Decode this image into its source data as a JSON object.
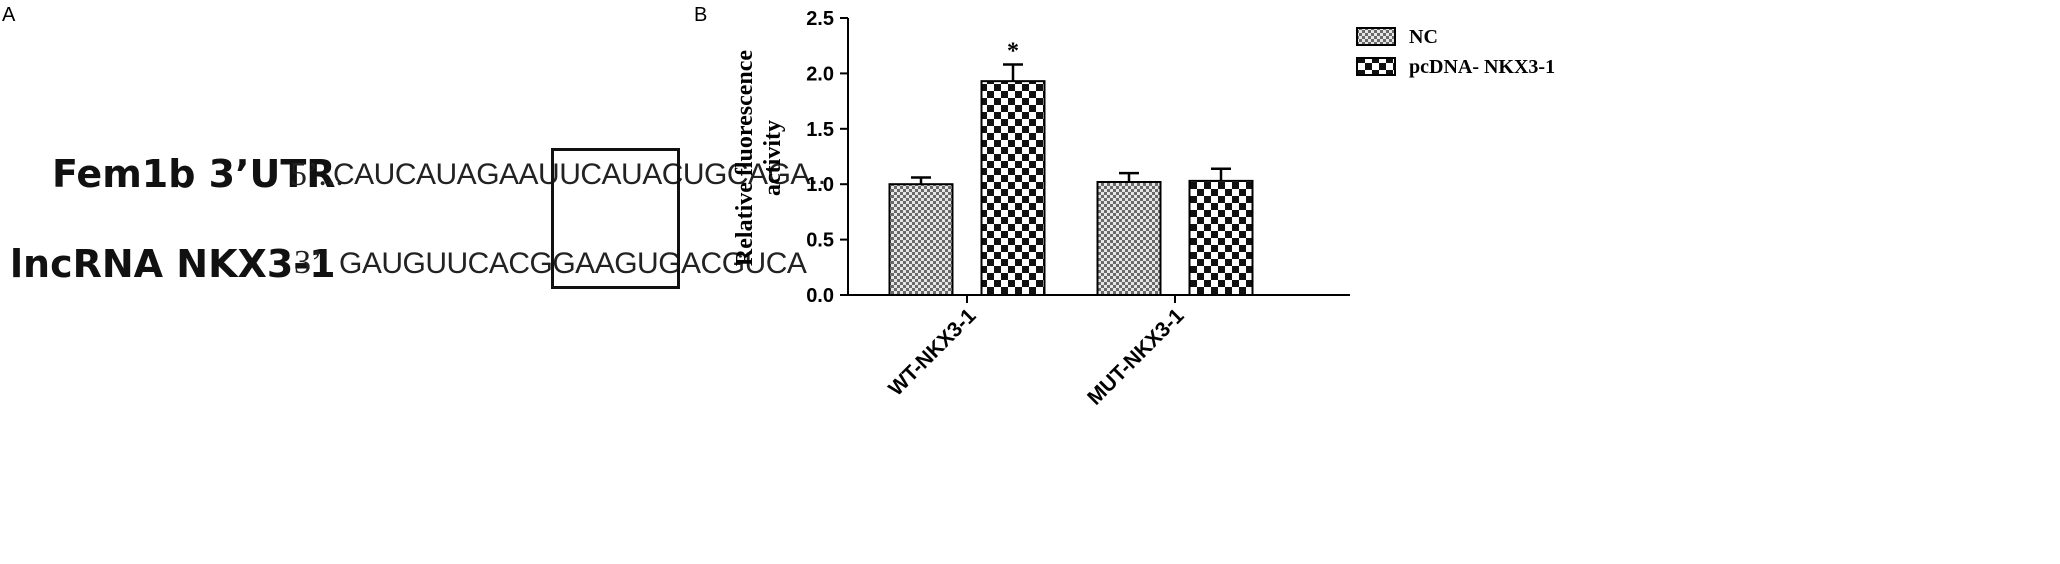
{
  "panel_a": {
    "letter": "A",
    "rows": [
      {
        "label": "Fem1b 3’UTR",
        "prefix": "5’...",
        "sequence": "CAUCAUAGAAUUCAUACUGCAGA.."
      },
      {
        "label": "lncRNA NKX3-1",
        "prefix": "3’",
        "sequence": "GAUGUUCACGGAAGUGACGUCA"
      }
    ]
  },
  "panel_b": {
    "letter": "B"
  },
  "chart_data": {
    "type": "bar",
    "categories": [
      "WT-NKX3-1",
      "MUT-NKX3-1"
    ],
    "series": [
      {
        "name": "NC",
        "values": [
          1.0,
          1.02
        ],
        "errors": [
          0.06,
          0.08
        ],
        "pattern": "fine-check"
      },
      {
        "name": "pcDNA- NKX3-1",
        "values": [
          1.93,
          1.03
        ],
        "errors": [
          0.15,
          0.11
        ],
        "pattern": "coarse-check"
      }
    ],
    "annotations": [
      {
        "category": "WT-NKX3-1",
        "series": "pcDNA- NKX3-1",
        "text": "*"
      }
    ],
    "ylabel_lines": [
      "Relative fluorescence",
      "activity"
    ],
    "xlabel": "",
    "ylim": [
      0,
      2.5
    ],
    "yticks": [
      "0.0",
      "0.5",
      "1.0",
      "1.5",
      "2.0",
      "2.5"
    ],
    "ytick_values": [
      0,
      0.5,
      1.0,
      1.5,
      2.0,
      2.5
    ],
    "grid": false,
    "legend_position": "top-right"
  }
}
